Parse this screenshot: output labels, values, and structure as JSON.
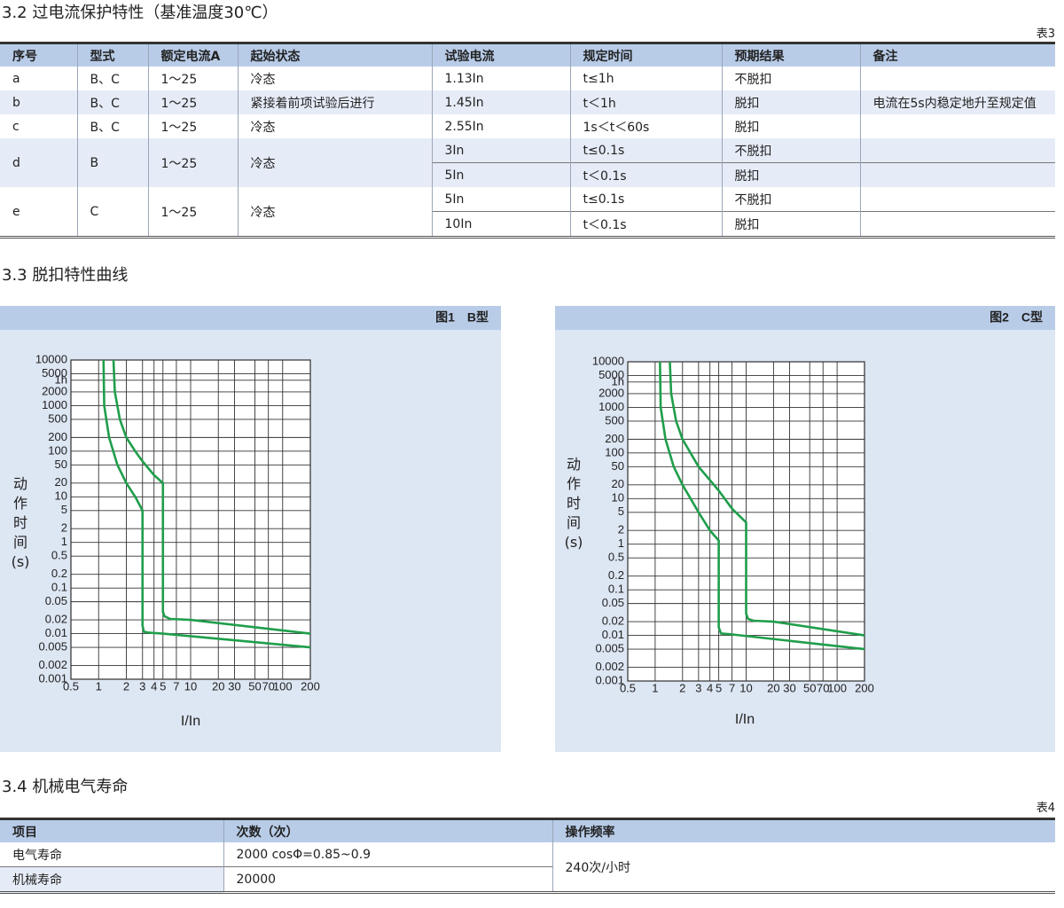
{
  "section_3_2": {
    "title": "3.2 过电流保护特性（基准温度30℃）",
    "table_label": "表3"
  },
  "table3": {
    "headers": [
      "序号",
      "型式",
      "额定电流A",
      "起始状态",
      "试验电流",
      "规定时间",
      "预期结果",
      "备注"
    ],
    "rows": [
      {
        "id": "a",
        "type": "B、C",
        "rated": "1～25",
        "state": "冷态",
        "tests": [
          {
            "current": "1.13In",
            "time": "t≤1h",
            "result": "不脱扣"
          }
        ]
      },
      {
        "id": "b",
        "type": "B、C",
        "rated": "1～25",
        "state": "紧接着前项试验后进行",
        "tests": [
          {
            "current": "1.45In",
            "time": "t＜1h",
            "result": "脱扣"
          }
        ],
        "note": "电流在5s内稳定地升至规定值"
      },
      {
        "id": "c",
        "type": "B、C",
        "rated": "1～25",
        "state": "冷态",
        "tests": [
          {
            "current": "2.55In",
            "time": "1s＜t＜60s",
            "result": "脱扣"
          }
        ]
      },
      {
        "id": "d",
        "type": "B",
        "rated": "1～25",
        "state": "冷态",
        "tests": [
          {
            "current": "3In",
            "time": "t≤0.1s",
            "result": "不脱扣"
          },
          {
            "current": "5In",
            "time": "t＜0.1s",
            "result": "脱扣"
          }
        ]
      },
      {
        "id": "e",
        "type": "C",
        "rated": "1～25",
        "state": "冷态",
        "tests": [
          {
            "current": "5In",
            "time": "t≤0.1s",
            "result": "不脱扣"
          },
          {
            "current": "10In",
            "time": "t＜0.1s",
            "result": "脱扣"
          }
        ]
      }
    ]
  },
  "section_3_3": {
    "title": "3.3 脱扣特性曲线"
  },
  "chart_data": [
    {
      "type": "line",
      "title": "图1　B型",
      "y_label": "动作时间(s)",
      "x_label": "I/In",
      "xlog": true,
      "ylog": true,
      "grid": true,
      "xlim": [
        0.5,
        200
      ],
      "ylim": [
        0.001,
        10000
      ],
      "xticks": [
        0.5,
        1,
        2,
        3,
        4,
        5,
        7,
        10,
        20,
        30,
        50,
        70,
        100,
        200
      ],
      "yticks": [
        10000,
        5000,
        {
          "value": 3600,
          "label": "1h"
        },
        2000,
        1000,
        500,
        200,
        100,
        50,
        20,
        10,
        5,
        2,
        1,
        0.5,
        0.2,
        0.1,
        0.05,
        0.02,
        0.01,
        0.005,
        0.002,
        0.001
      ],
      "series": [
        {
          "color": "#1f9e4b",
          "x": [
            1.45,
            1.5,
            1.7,
            2,
            2.5,
            3,
            4,
            5,
            5,
            5.2,
            6,
            10,
            200
          ],
          "values": [
            10000,
            2000,
            500,
            200,
            100,
            60,
            30,
            20,
            0.03,
            0.024,
            0.021,
            0.02,
            0.01
          ]
        },
        {
          "color": "#1f9e4b",
          "x": [
            1.13,
            1.15,
            1.3,
            1.6,
            2,
            2.5,
            3,
            3,
            3.1,
            3.5,
            5,
            200
          ],
          "values": [
            10000,
            1000,
            200,
            50,
            20,
            10,
            5,
            0.015,
            0.011,
            0.0105,
            0.01,
            0.005
          ]
        }
      ]
    },
    {
      "type": "line",
      "title": "图2　C型",
      "y_label": "动作时间(s)",
      "x_label": "I/In",
      "xlog": true,
      "ylog": true,
      "grid": true,
      "xlim": [
        0.5,
        200
      ],
      "ylim": [
        0.001,
        10000
      ],
      "xticks": [
        0.5,
        1,
        2,
        3,
        4,
        5,
        7,
        10,
        20,
        30,
        50,
        70,
        100,
        200
      ],
      "yticks": [
        10000,
        5000,
        {
          "value": 3600,
          "label": "1h"
        },
        2000,
        1000,
        500,
        200,
        100,
        50,
        20,
        10,
        5,
        2,
        1,
        0.5,
        0.2,
        0.1,
        0.05,
        0.02,
        0.01,
        0.005,
        0.002,
        0.001
      ],
      "series": [
        {
          "color": "#1f9e4b",
          "x": [
            1.45,
            1.5,
            1.7,
            2,
            3,
            5,
            7,
            10,
            10,
            10.5,
            12,
            20,
            200
          ],
          "values": [
            10000,
            2000,
            500,
            200,
            50,
            15,
            6,
            3,
            0.03,
            0.023,
            0.021,
            0.02,
            0.01
          ]
        },
        {
          "color": "#1f9e4b",
          "x": [
            1.13,
            1.15,
            1.3,
            1.6,
            2,
            3,
            4,
            5,
            5,
            5.3,
            7,
            200
          ],
          "values": [
            10000,
            1000,
            200,
            50,
            20,
            5,
            2,
            1.2,
            0.015,
            0.011,
            0.0105,
            0.005
          ]
        }
      ]
    }
  ],
  "section_3_4": {
    "title": "3.4 机械电气寿命",
    "table_label": "表4"
  },
  "table4": {
    "headers": [
      "项目",
      "次数（次）",
      "操作频率"
    ],
    "rows": [
      [
        "电气寿命",
        "2000 cosΦ=0.85~0.9"
      ],
      [
        "机械寿命",
        "20000"
      ]
    ],
    "frequency": "240次/小时"
  }
}
